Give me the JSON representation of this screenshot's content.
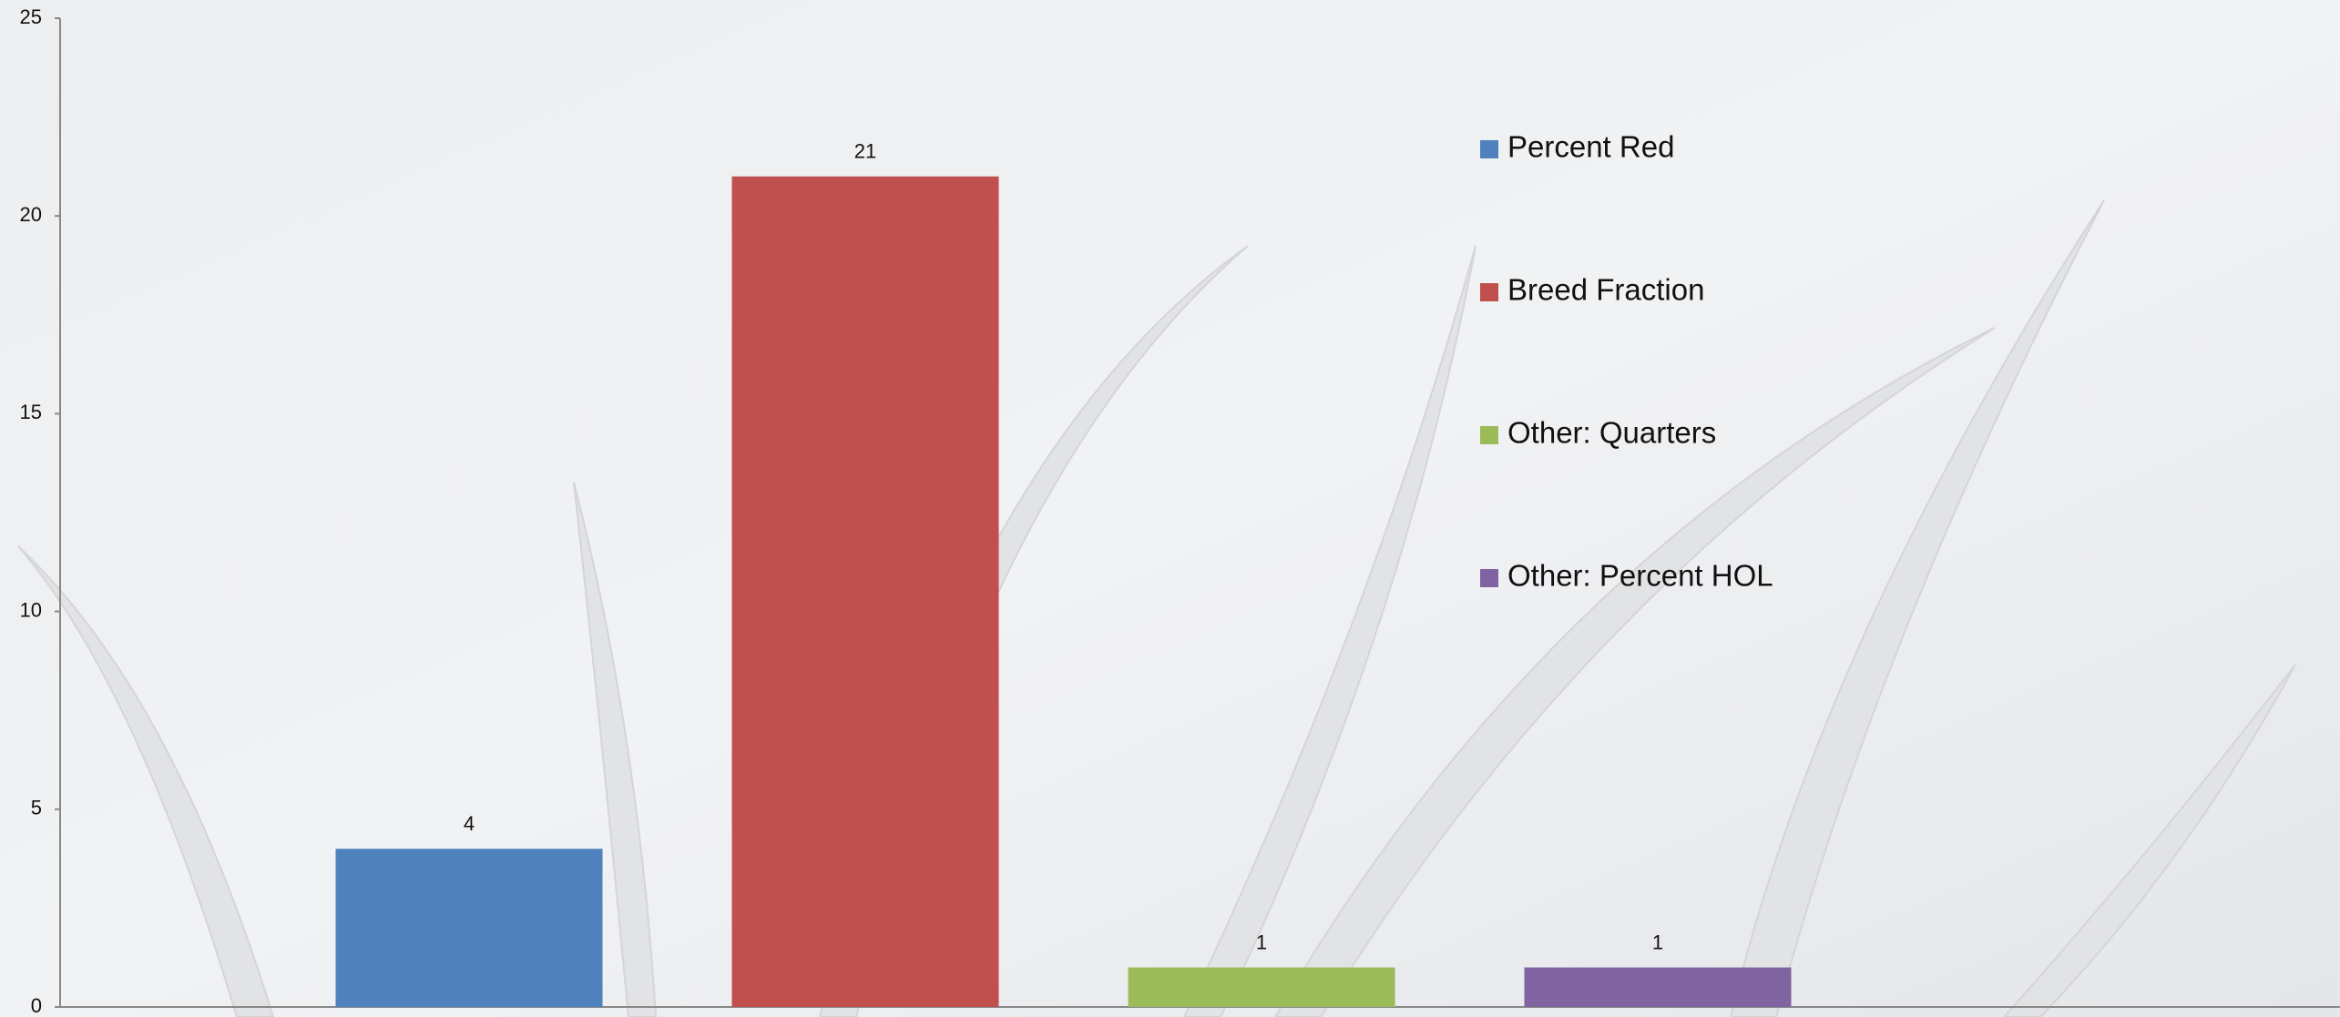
{
  "chart_data": {
    "type": "bar",
    "categories": [
      null
    ],
    "series": [
      {
        "name": "Percent Red",
        "color": "#4f81bd",
        "values": [
          4
        ]
      },
      {
        "name": "Breed Fraction",
        "color": "#c0504d",
        "values": [
          21
        ]
      },
      {
        "name": "Other: Quarters",
        "color": "#9bbb59",
        "values": [
          1
        ]
      },
      {
        "name": "Other: Percent HOL",
        "color": "#8064a2",
        "values": [
          1
        ]
      }
    ],
    "ylim": [
      0,
      25
    ],
    "yticks": [
      0,
      5,
      10,
      15,
      20,
      25
    ],
    "grid": false,
    "legend": "right"
  }
}
